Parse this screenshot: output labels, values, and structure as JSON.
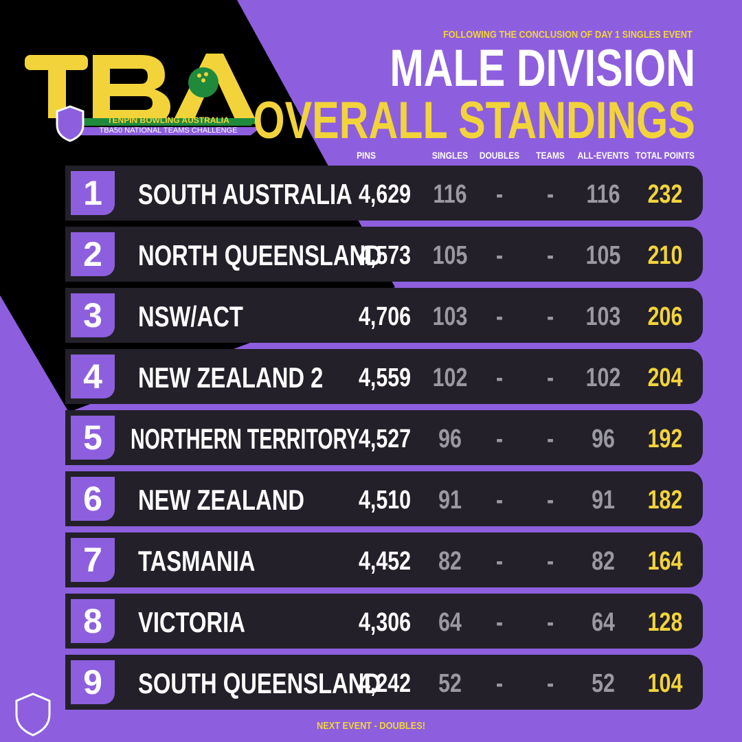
{
  "logo": {
    "name": "TENPIN BOWLING AUSTRALIA",
    "event": "TBA50 NATIONAL TEAMS CHALLENGE"
  },
  "header": {
    "kicker": "FOLLOWING THE CONCLUSION OF DAY 1 SINGLES EVENT",
    "title": "MALE DIVISION",
    "subtitle": "OVERALL STANDINGS"
  },
  "table": {
    "columns": [
      "PINS",
      "SINGLES",
      "DOUBLES",
      "TEAMS",
      "ALL-EVENTS",
      "TOTAL POINTS"
    ],
    "rows": [
      [
        "1",
        "SOUTH AUSTRALIA",
        "4,629",
        "116",
        "-",
        "-",
        "116",
        "232"
      ],
      [
        "2",
        "NORTH QUEENSLAND",
        "4,573",
        "105",
        "-",
        "-",
        "105",
        "210"
      ],
      [
        "3",
        "NSW/ACT",
        "4,706",
        "103",
        "-",
        "-",
        "103",
        "206"
      ],
      [
        "4",
        "NEW ZEALAND 2",
        "4,559",
        "102",
        "-",
        "-",
        "102",
        "204"
      ],
      [
        "5",
        "NORTHERN TERRITORY",
        "4,527",
        "96",
        "-",
        "-",
        "96",
        "192"
      ],
      [
        "6",
        "NEW ZEALAND",
        "4,510",
        "91",
        "-",
        "-",
        "91",
        "182"
      ],
      [
        "7",
        "TASMANIA",
        "4,452",
        "82",
        "-",
        "-",
        "82",
        "164"
      ],
      [
        "8",
        "VICTORIA",
        "4,306",
        "64",
        "-",
        "-",
        "64",
        "128"
      ],
      [
        "9",
        "SOUTH QUEENSLAND",
        "4,242",
        "52",
        "-",
        "-",
        "52",
        "104"
      ]
    ]
  },
  "footer": "NEXT EVENT - DOUBLES!"
}
